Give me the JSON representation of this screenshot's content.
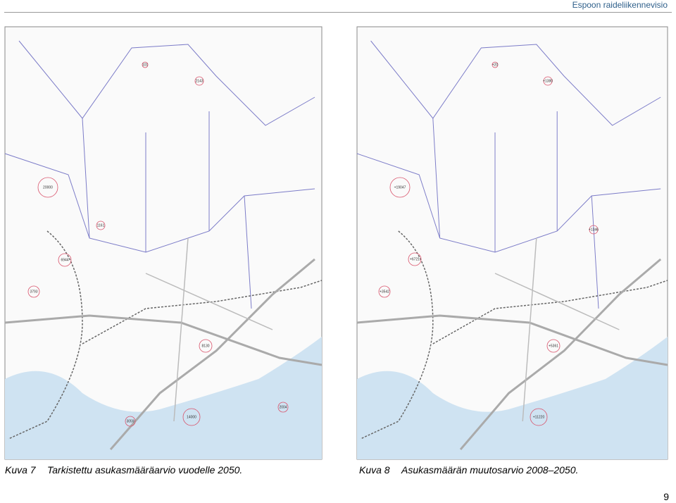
{
  "header": {
    "title": "Espoon raideliikennevisio"
  },
  "figures": [
    {
      "number": "Kuva 7",
      "caption": "Tarkistettu asukasmääräarvio vuodelle 2050.",
      "map_labels": [
        "20000",
        "6944",
        "3793",
        "1161",
        "2143",
        "101",
        "8130",
        "14000",
        "3059",
        "2004"
      ]
    },
    {
      "number": "Kuva 8",
      "caption": "Asukasmäärän muutosarvio 2008–2050.",
      "map_labels": [
        "+19047",
        "+6721",
        "+3542",
        "+1346",
        "+1380",
        "+20",
        "+5361",
        "+11220"
      ]
    }
  ],
  "page_number": "9"
}
